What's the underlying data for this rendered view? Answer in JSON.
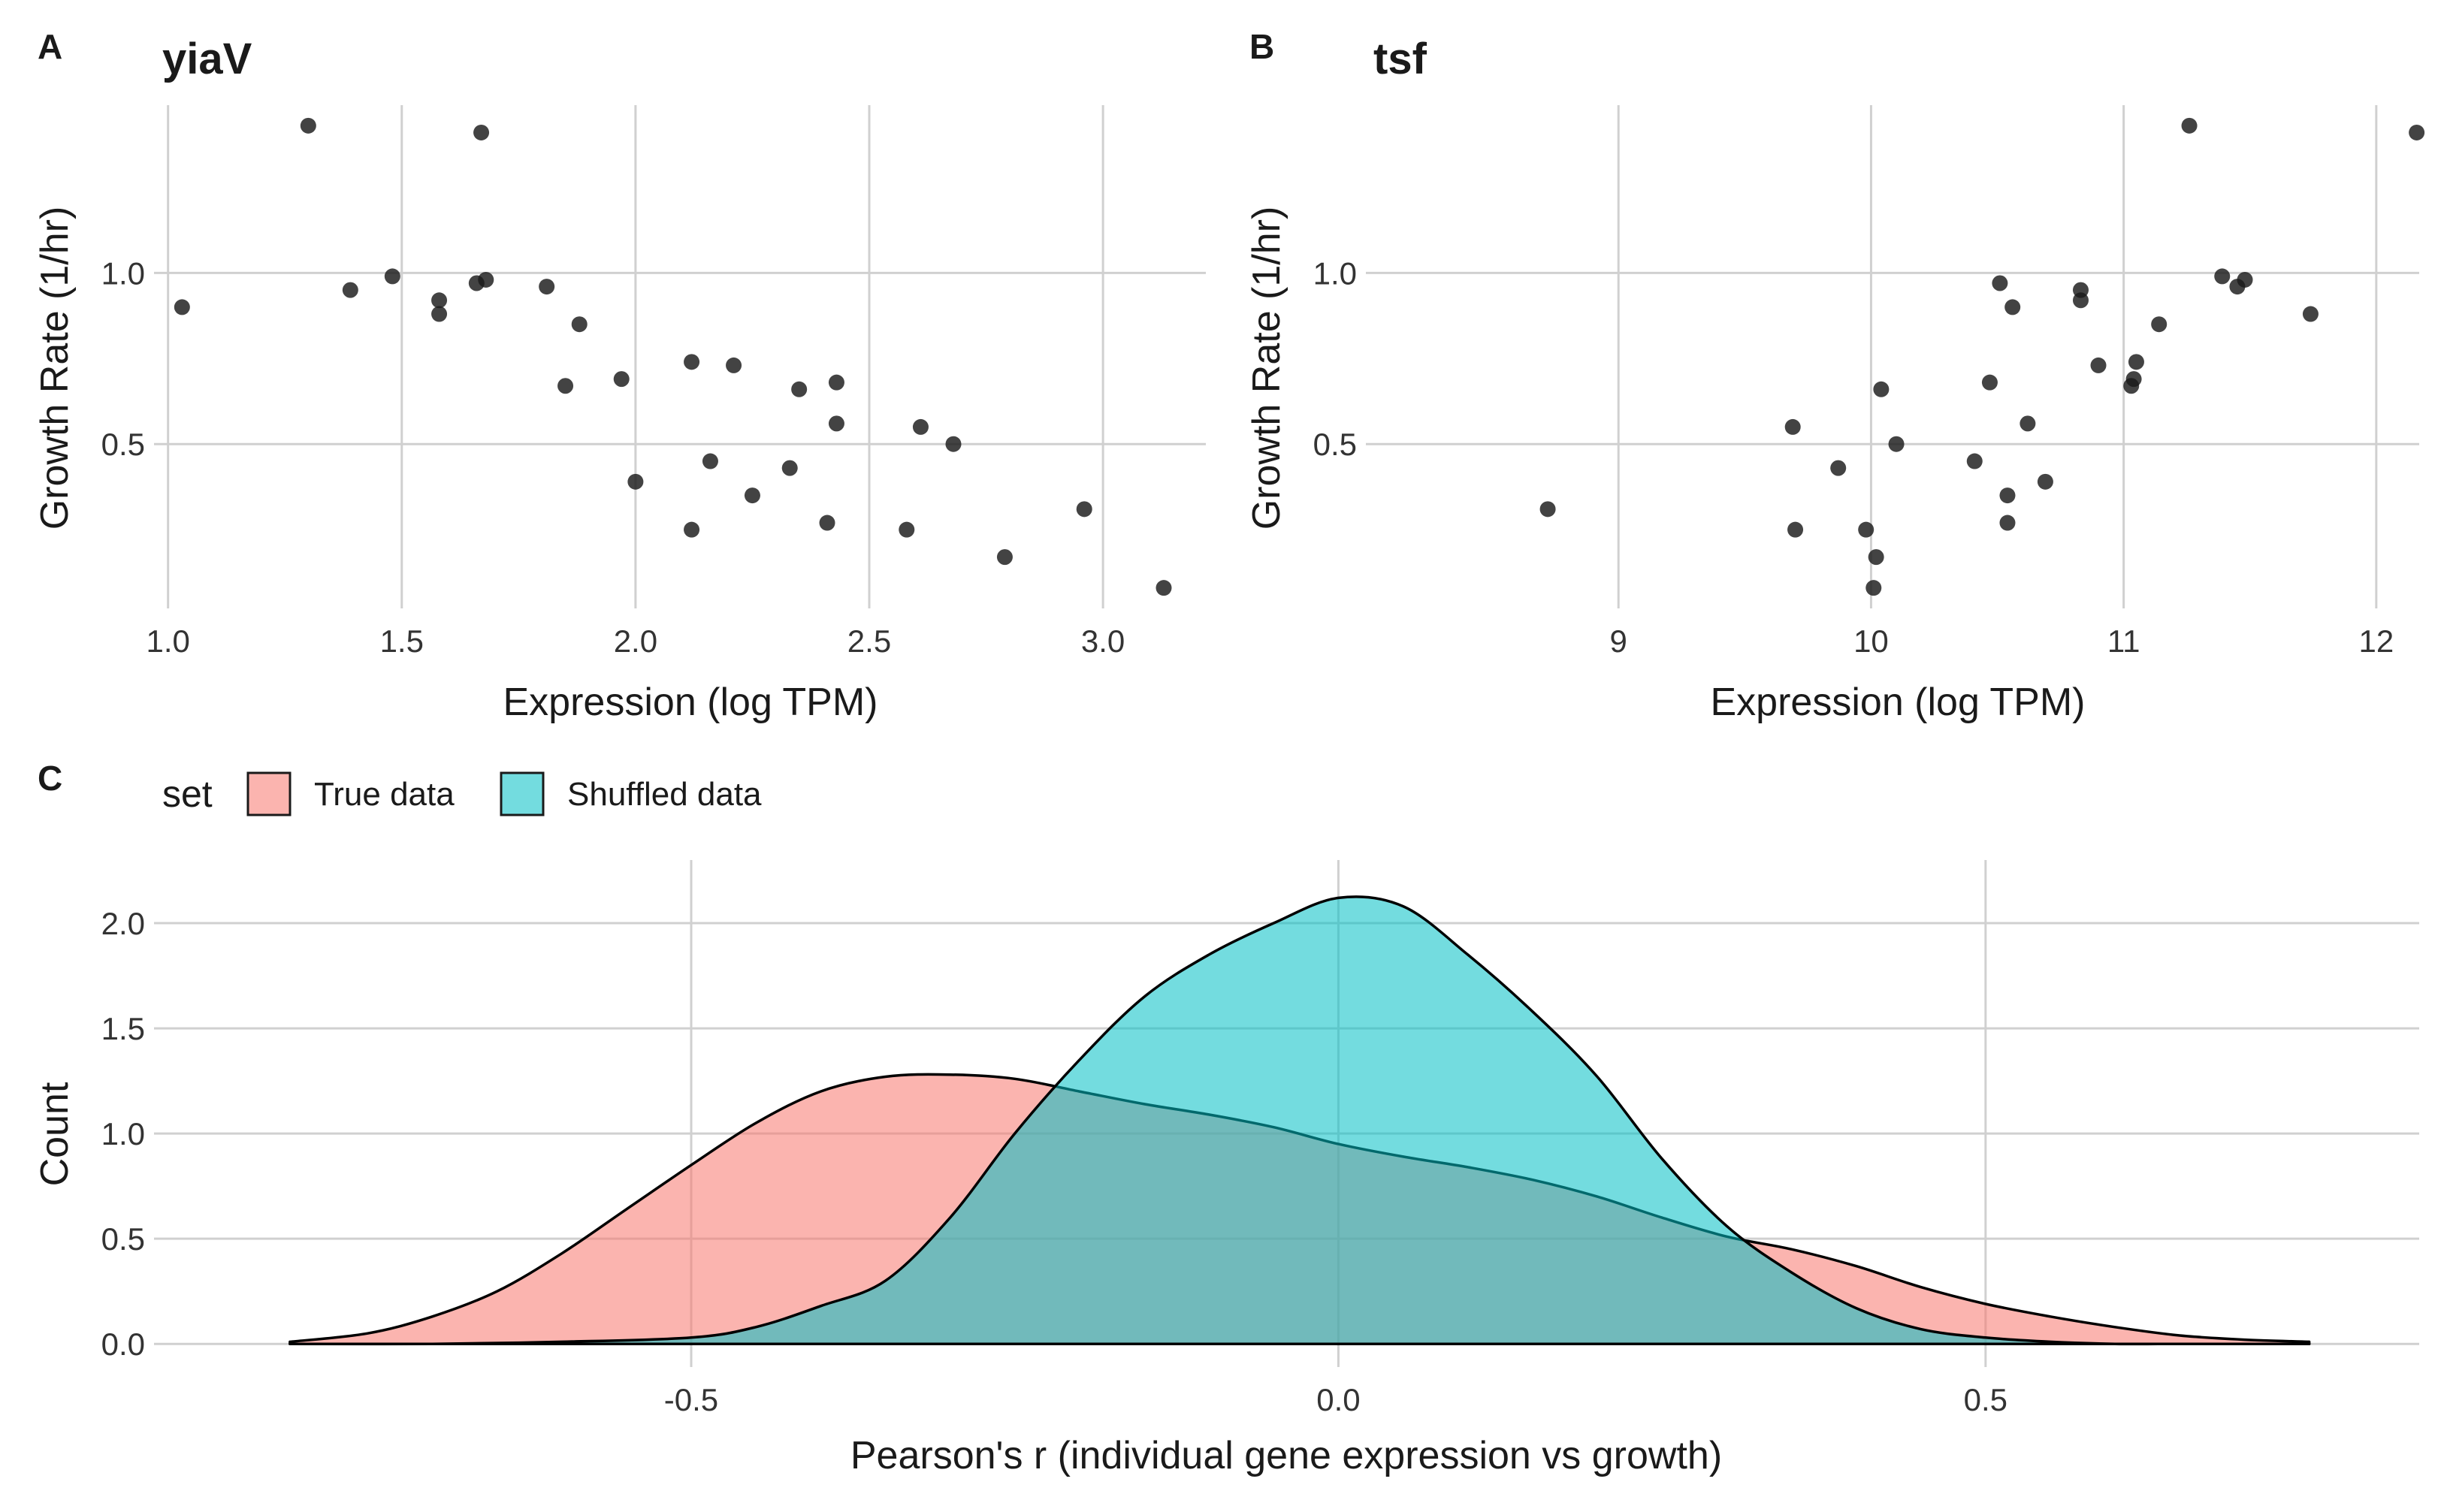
{
  "panels": {
    "a": {
      "tag": "A",
      "title": "yiaV"
    },
    "b": {
      "tag": "B",
      "title": "tsf"
    },
    "c": {
      "tag": "C"
    }
  },
  "colors": {
    "true_data": "#F8766D",
    "shuffled_data": "#00BFC4",
    "grid": "#d0d0d0",
    "point": "#1a1a1a"
  },
  "chart_data": [
    {
      "type": "scatter",
      "title": "yiaV",
      "xlabel": "Expression (log TPM)",
      "ylabel": "Growth Rate (1/hr)",
      "xlim": [
        0.97,
        3.22
      ],
      "ylim": [
        0.02,
        1.49
      ],
      "xticks": [
        1.0,
        1.5,
        2.0,
        2.5,
        3.0
      ],
      "xtick_labels": [
        "1.0",
        "1.5",
        "2.0",
        "2.5",
        "3.0"
      ],
      "yticks": [
        0.5,
        1.0
      ],
      "ytick_labels": [
        "0.5",
        "1.0"
      ],
      "grid": true,
      "points": [
        {
          "x": 1.03,
          "y": 0.9
        },
        {
          "x": 1.3,
          "y": 1.43
        },
        {
          "x": 1.39,
          "y": 0.95
        },
        {
          "x": 1.48,
          "y": 0.99
        },
        {
          "x": 1.58,
          "y": 0.92
        },
        {
          "x": 1.58,
          "y": 0.88
        },
        {
          "x": 1.66,
          "y": 0.97
        },
        {
          "x": 1.67,
          "y": 1.41
        },
        {
          "x": 1.68,
          "y": 0.98
        },
        {
          "x": 1.81,
          "y": 0.96
        },
        {
          "x": 1.85,
          "y": 0.67
        },
        {
          "x": 1.88,
          "y": 0.85
        },
        {
          "x": 1.97,
          "y": 0.69
        },
        {
          "x": 2.0,
          "y": 0.39
        },
        {
          "x": 2.12,
          "y": 0.74
        },
        {
          "x": 2.12,
          "y": 0.25
        },
        {
          "x": 2.16,
          "y": 0.45
        },
        {
          "x": 2.21,
          "y": 0.73
        },
        {
          "x": 2.25,
          "y": 0.35
        },
        {
          "x": 2.33,
          "y": 0.43
        },
        {
          "x": 2.35,
          "y": 0.66
        },
        {
          "x": 2.41,
          "y": 0.27
        },
        {
          "x": 2.43,
          "y": 0.68
        },
        {
          "x": 2.43,
          "y": 0.56
        },
        {
          "x": 2.58,
          "y": 0.25
        },
        {
          "x": 2.61,
          "y": 0.55
        },
        {
          "x": 2.68,
          "y": 0.5
        },
        {
          "x": 2.79,
          "y": 0.17
        },
        {
          "x": 2.96,
          "y": 0.31
        },
        {
          "x": 3.13,
          "y": 0.08
        }
      ]
    },
    {
      "type": "scatter",
      "title": "tsf",
      "xlabel": "Expression (log TPM)",
      "ylabel": "Growth Rate (1/hr)",
      "xlim": [
        8.0,
        12.17
      ],
      "ylim": [
        0.02,
        1.49
      ],
      "xticks": [
        9,
        10,
        11,
        12
      ],
      "xtick_labels": [
        "9",
        "10",
        "11",
        "12"
      ],
      "yticks": [
        0.5,
        1.0
      ],
      "ytick_labels": [
        "0.5",
        "1.0"
      ],
      "grid": true,
      "points": [
        {
          "x": 8.72,
          "y": 0.31
        },
        {
          "x": 9.69,
          "y": 0.55
        },
        {
          "x": 9.7,
          "y": 0.25
        },
        {
          "x": 9.87,
          "y": 0.43
        },
        {
          "x": 9.98,
          "y": 0.25
        },
        {
          "x": 10.01,
          "y": 0.08
        },
        {
          "x": 10.02,
          "y": 0.17
        },
        {
          "x": 10.04,
          "y": 0.66
        },
        {
          "x": 10.1,
          "y": 0.5
        },
        {
          "x": 10.41,
          "y": 0.45
        },
        {
          "x": 10.47,
          "y": 0.68
        },
        {
          "x": 10.51,
          "y": 0.97
        },
        {
          "x": 10.54,
          "y": 0.35
        },
        {
          "x": 10.54,
          "y": 0.27
        },
        {
          "x": 10.56,
          "y": 0.9
        },
        {
          "x": 10.62,
          "y": 0.56
        },
        {
          "x": 10.69,
          "y": 0.39
        },
        {
          "x": 10.83,
          "y": 0.92
        },
        {
          "x": 10.83,
          "y": 0.95
        },
        {
          "x": 10.9,
          "y": 0.73
        },
        {
          "x": 11.03,
          "y": 0.67
        },
        {
          "x": 11.04,
          "y": 0.69
        },
        {
          "x": 11.05,
          "y": 0.74
        },
        {
          "x": 11.14,
          "y": 0.85
        },
        {
          "x": 11.26,
          "y": 1.43
        },
        {
          "x": 11.39,
          "y": 0.99
        },
        {
          "x": 11.45,
          "y": 0.96
        },
        {
          "x": 11.48,
          "y": 0.98
        },
        {
          "x": 11.74,
          "y": 0.88
        },
        {
          "x": 12.16,
          "y": 1.41
        }
      ]
    },
    {
      "type": "area",
      "xlabel": "Pearson's r (individual gene expression vs growth)",
      "ylabel": "Count",
      "xlim": [
        -0.915,
        0.835
      ],
      "ylim": [
        -0.11,
        2.3
      ],
      "xticks": [
        -0.5,
        0.0,
        0.5
      ],
      "xtick_labels": [
        "-0.5",
        "0.0",
        "0.5"
      ],
      "yticks": [
        0.0,
        0.5,
        1.0,
        1.5,
        2.0
      ],
      "ytick_labels": [
        "0.0",
        "0.5",
        "1.0",
        "1.5",
        "2.0"
      ],
      "grid": true,
      "legend": {
        "title": "set",
        "position": "top-left",
        "entries": [
          "True data",
          "Shuffled data"
        ]
      },
      "series": [
        {
          "name": "True data",
          "color": "#F8766D",
          "x": [
            -0.81,
            -0.75,
            -0.7,
            -0.65,
            -0.6,
            -0.55,
            -0.5,
            -0.45,
            -0.4,
            -0.35,
            -0.3,
            -0.25,
            -0.2,
            -0.15,
            -0.1,
            -0.05,
            0.0,
            0.05,
            0.1,
            0.15,
            0.2,
            0.25,
            0.3,
            0.35,
            0.4,
            0.45,
            0.5,
            0.55,
            0.6,
            0.65,
            0.7,
            0.75
          ],
          "y": [
            0.01,
            0.05,
            0.13,
            0.25,
            0.43,
            0.64,
            0.85,
            1.05,
            1.2,
            1.27,
            1.28,
            1.26,
            1.2,
            1.14,
            1.09,
            1.03,
            0.95,
            0.89,
            0.84,
            0.78,
            0.7,
            0.6,
            0.51,
            0.45,
            0.37,
            0.27,
            0.19,
            0.13,
            0.08,
            0.04,
            0.02,
            0.01
          ]
        },
        {
          "name": "Shuffled data",
          "color": "#00BFC4",
          "x": [
            -0.81,
            -0.7,
            -0.6,
            -0.5,
            -0.45,
            -0.4,
            -0.35,
            -0.3,
            -0.25,
            -0.2,
            -0.15,
            -0.1,
            -0.05,
            0.0,
            0.05,
            0.1,
            0.15,
            0.2,
            0.25,
            0.3,
            0.35,
            0.4,
            0.45,
            0.5,
            0.55,
            0.6,
            0.65,
            0.7,
            0.75
          ],
          "y": [
            0.0,
            0.0,
            0.01,
            0.03,
            0.08,
            0.18,
            0.3,
            0.6,
            1.0,
            1.35,
            1.65,
            1.85,
            2.0,
            2.12,
            2.08,
            1.85,
            1.58,
            1.27,
            0.88,
            0.56,
            0.34,
            0.17,
            0.07,
            0.03,
            0.01,
            0.0,
            0.0,
            0.0,
            0.0
          ]
        }
      ]
    }
  ]
}
